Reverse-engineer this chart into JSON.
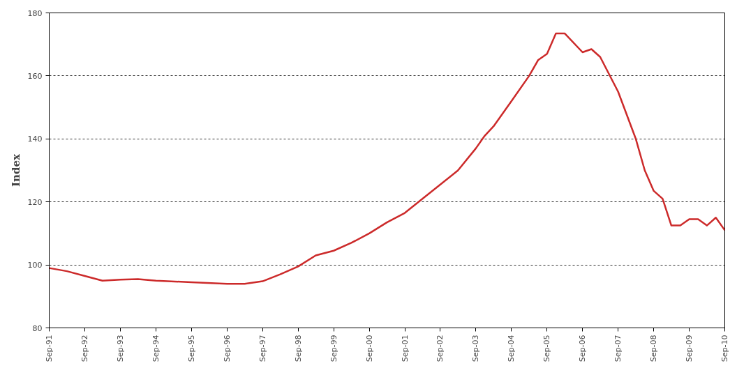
{
  "chart_data": {
    "type": "line",
    "ylabel": "Index",
    "x": [
      "1991-09",
      "1992-03",
      "1992-09",
      "1993-03",
      "1993-09",
      "1994-03",
      "1994-09",
      "1995-09",
      "1996-09",
      "1997-03",
      "1997-09",
      "1998-03",
      "1998-09",
      "1999-03",
      "1999-09",
      "2000-03",
      "2000-09",
      "2001-03",
      "2001-09",
      "2002-03",
      "2002-09",
      "2003-03",
      "2003-09",
      "2003-12",
      "2004-03",
      "2004-09",
      "2005-03",
      "2005-06",
      "2005-09",
      "2005-12",
      "2006-03",
      "2006-09",
      "2006-12",
      "2007-03",
      "2007-09",
      "2008-03",
      "2008-06",
      "2008-09",
      "2008-12",
      "2009-03",
      "2009-06",
      "2009-09",
      "2009-12",
      "2010-03",
      "2010-06",
      "2010-09"
    ],
    "series": [
      {
        "color": "#cc2a2a",
        "values": [
          99,
          98,
          96.5,
          95,
          95.3,
          95.5,
          95,
          94.5,
          94,
          94,
          94.8,
          97,
          99.5,
          103,
          104.5,
          107,
          110,
          113.5,
          116.5,
          121,
          125.5,
          130,
          137,
          141,
          144,
          152,
          160,
          165,
          167,
          173.5,
          173.5,
          167.5,
          168.5,
          166,
          155,
          140,
          130,
          123.5,
          121,
          112.5,
          112.5,
          114.5,
          114.5,
          112.5,
          115,
          111
        ]
      }
    ],
    "xlim": [
      "1991-09",
      "2010-09"
    ],
    "xticks": [
      {
        "value": "1991-09",
        "label": "Sep-91"
      },
      {
        "value": "1992-09",
        "label": "Sep-92"
      },
      {
        "value": "1993-09",
        "label": "Sep-93"
      },
      {
        "value": "1994-09",
        "label": "Sep-94"
      },
      {
        "value": "1995-09",
        "label": "Sep-95"
      },
      {
        "value": "1996-09",
        "label": "Sep-96"
      },
      {
        "value": "1997-09",
        "label": "Sep-97"
      },
      {
        "value": "1998-09",
        "label": "Sep-98"
      },
      {
        "value": "1999-09",
        "label": "Sep-99"
      },
      {
        "value": "2000-09",
        "label": "Sep-00"
      },
      {
        "value": "2001-09",
        "label": "Sep-01"
      },
      {
        "value": "2002-09",
        "label": "Sep-02"
      },
      {
        "value": "2003-09",
        "label": "Sep-03"
      },
      {
        "value": "2004-09",
        "label": "Sep-04"
      },
      {
        "value": "2005-09",
        "label": "Sep-05"
      },
      {
        "value": "2006-09",
        "label": "Sep-06"
      },
      {
        "value": "2007-09",
        "label": "Sep-07"
      },
      {
        "value": "2008-09",
        "label": "Sep-08"
      },
      {
        "value": "2009-09",
        "label": "Sep-09"
      },
      {
        "value": "2010-09",
        "label": "Sep-10"
      }
    ],
    "ylim": [
      80,
      180
    ],
    "yticks": [
      80,
      100,
      120,
      140,
      160,
      180
    ],
    "grid": "y",
    "marker": "none",
    "line_style": "solid"
  }
}
